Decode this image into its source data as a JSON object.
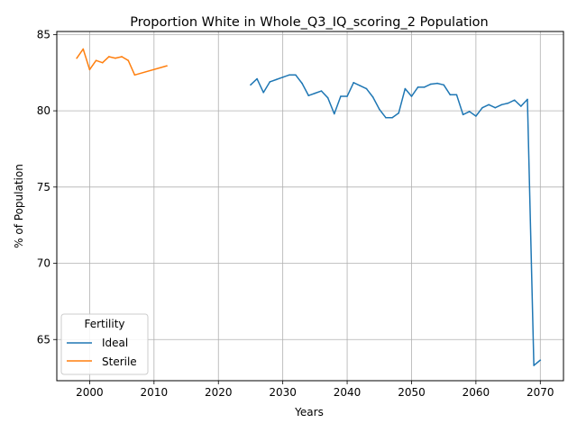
{
  "chart_data": {
    "type": "line",
    "title": "Proportion White in Whole_Q3_IQ_scoring_2 Population",
    "xlabel": "Years",
    "ylabel": "% of Population",
    "xlim": [
      1994.9,
      2073.6
    ],
    "ylim": [
      62.3,
      85.2
    ],
    "xticks": [
      2000,
      2010,
      2020,
      2030,
      2040,
      2050,
      2060,
      2070
    ],
    "yticks": [
      65,
      70,
      75,
      80,
      85
    ],
    "grid": true,
    "legend": {
      "title": "Fertility",
      "placement": "lower-left"
    },
    "series": [
      {
        "name": "Ideal",
        "color": "#1f77b4",
        "x": [
          2025,
          2026,
          2027,
          2028,
          2029,
          2030,
          2031,
          2032,
          2033,
          2034,
          2035,
          2036,
          2037,
          2038,
          2039,
          2040,
          2041,
          2042,
          2043,
          2044,
          2045,
          2046,
          2047,
          2048,
          2049,
          2050,
          2051,
          2052,
          2053,
          2054,
          2055,
          2056,
          2057,
          2058,
          2059,
          2060,
          2061,
          2062,
          2063,
          2064,
          2065,
          2066,
          2067,
          2068,
          2069,
          2070
        ],
        "y": [
          81.7,
          82.1,
          81.2,
          81.9,
          82.05,
          82.2,
          82.35,
          82.35,
          81.8,
          81.0,
          81.15,
          81.3,
          80.85,
          79.8,
          80.95,
          80.95,
          81.85,
          81.65,
          81.45,
          80.9,
          80.1,
          79.55,
          79.55,
          79.85,
          81.45,
          80.95,
          81.55,
          81.55,
          81.75,
          81.8,
          81.7,
          81.05,
          81.05,
          79.75,
          79.95,
          79.65,
          80.2,
          80.4,
          80.2,
          80.4,
          80.5,
          80.7,
          80.3,
          80.75,
          63.3,
          63.65
        ]
      },
      {
        "name": "Sterile",
        "color": "#ff7f0e",
        "x": [
          1998,
          1999,
          2000,
          2001,
          2002,
          2003,
          2004,
          2005,
          2006,
          2007,
          2012
        ],
        "y": [
          83.45,
          84.05,
          82.7,
          83.3,
          83.15,
          83.55,
          83.45,
          83.55,
          83.3,
          82.35,
          82.95
        ]
      }
    ]
  }
}
